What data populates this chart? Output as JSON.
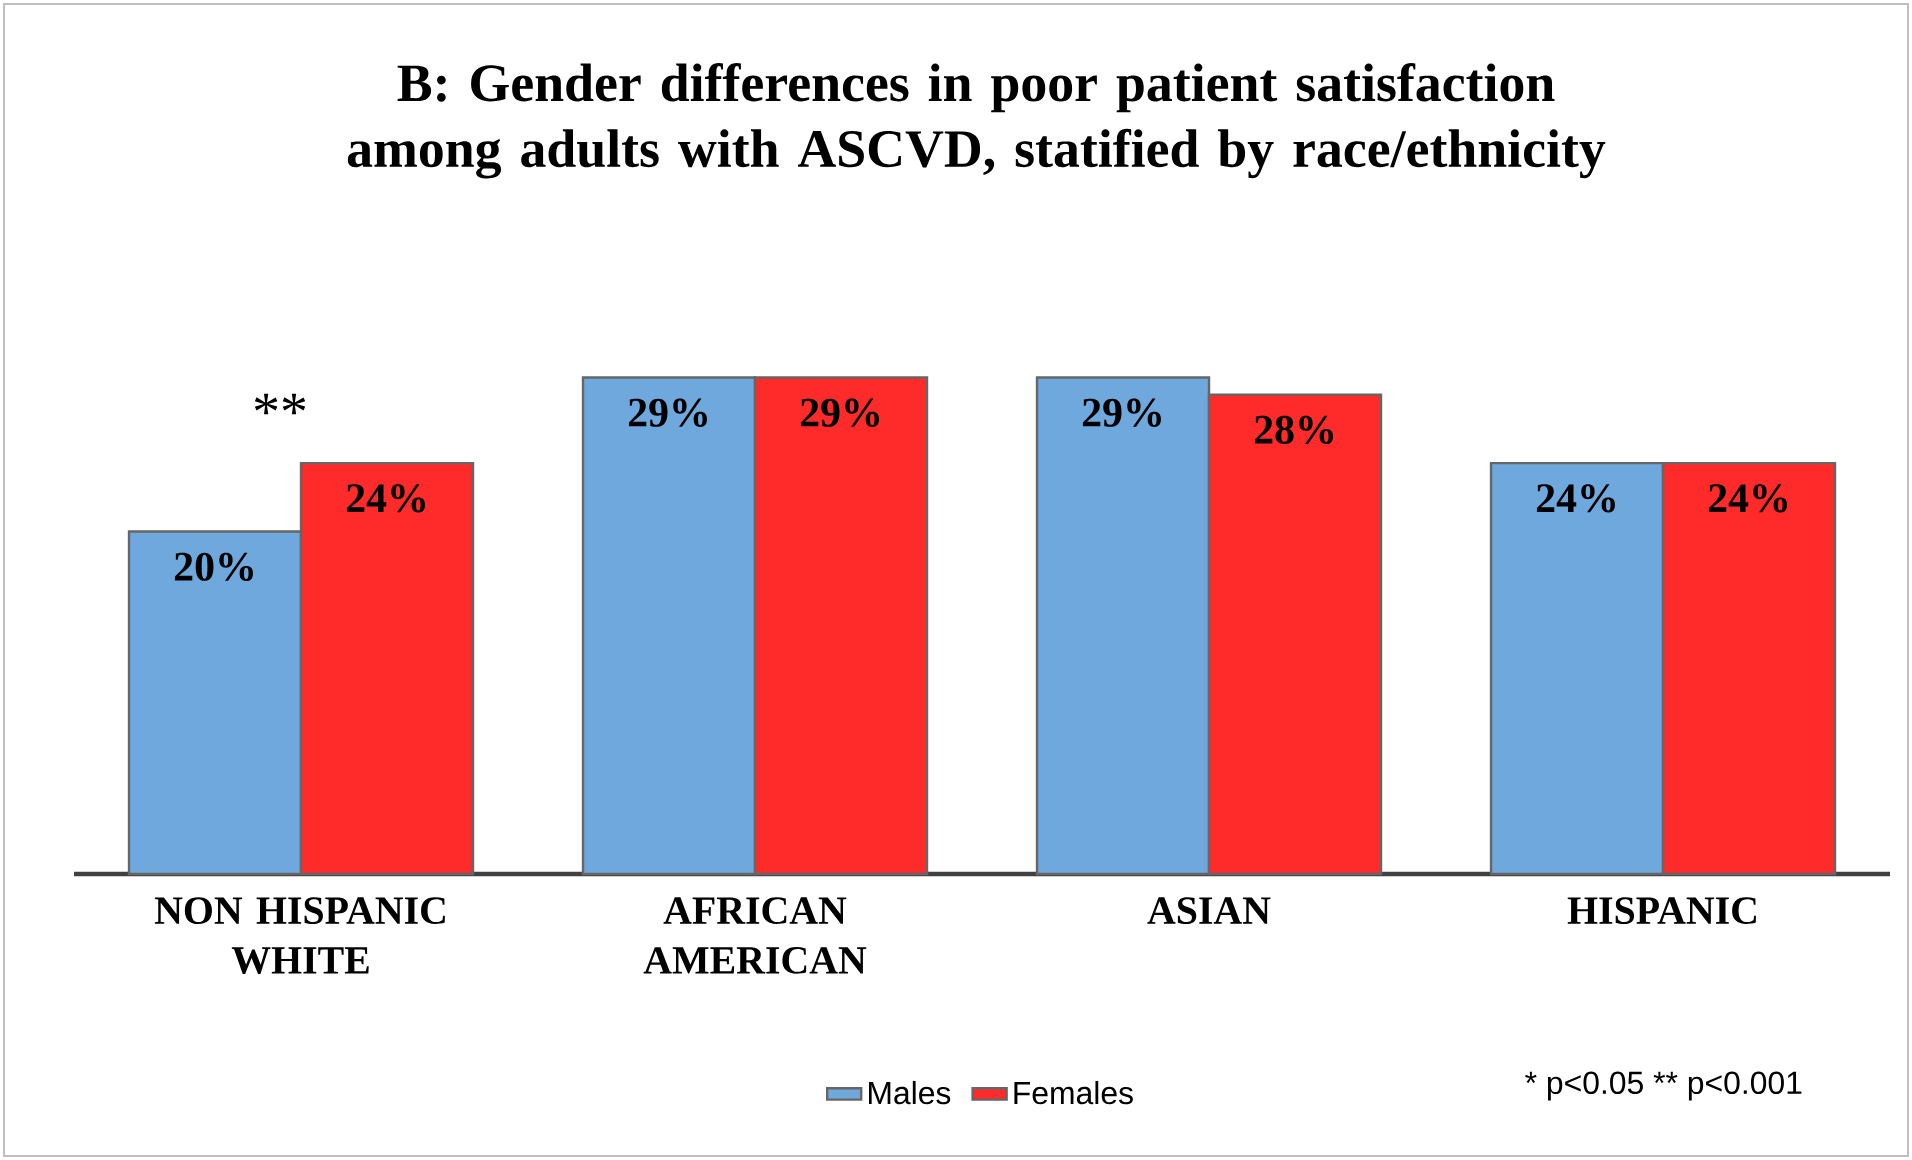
{
  "chart_data": {
    "type": "bar",
    "title": "B: Gender differences in poor patient satisfaction among adults with ASCVD, statified by race/ethnicity",
    "categories": [
      "NON HISPANIC WHITE",
      "AFRICAN AMERICAN",
      "ASIAN",
      "HISPANIC"
    ],
    "series": [
      {
        "name": "Males",
        "color": "#6fa8dc",
        "values": [
          20,
          29,
          29,
          24
        ],
        "value_labels": [
          "20%",
          "29%",
          "29%",
          "24%"
        ]
      },
      {
        "name": "Females",
        "color": "#ff2a2a",
        "values": [
          24,
          29,
          28,
          24
        ],
        "value_labels": [
          "24%",
          "29%",
          "28%",
          "24%"
        ]
      }
    ],
    "legend": "bottom",
    "annotations": [
      "**",
      "* p<0.05 ** p<0.001"
    ]
  }
}
